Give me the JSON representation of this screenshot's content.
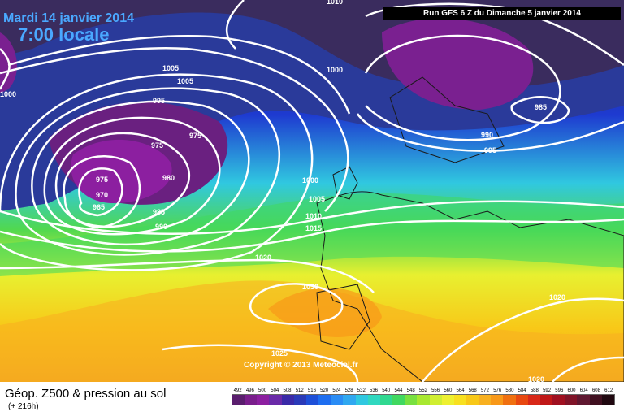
{
  "header": {
    "date": "Mardi 14 janvier 2014",
    "time": "7:00 locale",
    "run": "Run GFS 6 Z du Dimanche 5 janvier 2014"
  },
  "map": {
    "copyright": "Copyright © 2013 Meteociel.fr",
    "isobar_labels": [
      "1005",
      "1010",
      "1005",
      "995",
      "1000",
      "975",
      "975",
      "980",
      "975",
      "970",
      "965",
      "985",
      "990",
      "1000",
      "1005",
      "1010",
      "1015",
      "1020",
      "1030",
      "1025",
      "1000",
      "985",
      "990",
      "995",
      "1020",
      "1020"
    ]
  },
  "legend": {
    "title": "Géop. Z500 & pression au sol",
    "subtitle": "(+ 216h)",
    "ticks": [
      "492",
      "496",
      "500",
      "504",
      "508",
      "512",
      "516",
      "520",
      "524",
      "528",
      "532",
      "536",
      "540",
      "544",
      "548",
      "552",
      "556",
      "560",
      "564",
      "568",
      "572",
      "576",
      "580",
      "584",
      "588",
      "592",
      "596",
      "600",
      "604",
      "608",
      "612"
    ],
    "colors": [
      "#5a1e6e",
      "#7a1e8c",
      "#8c1fa0",
      "#6a2aa8",
      "#3a2aa8",
      "#2a3ab8",
      "#1e50d8",
      "#1e6ef0",
      "#2a8cf5",
      "#30a8f0",
      "#30c8e0",
      "#30d8c0",
      "#30d890",
      "#40d860",
      "#78e040",
      "#a8e830",
      "#d0ee30",
      "#eef030",
      "#f8e020",
      "#f8c818",
      "#f8b020",
      "#f89818",
      "#f07010",
      "#e84810",
      "#d82818",
      "#c01818",
      "#a01020",
      "#801428",
      "#601830",
      "#401020",
      "#200810"
    ]
  }
}
